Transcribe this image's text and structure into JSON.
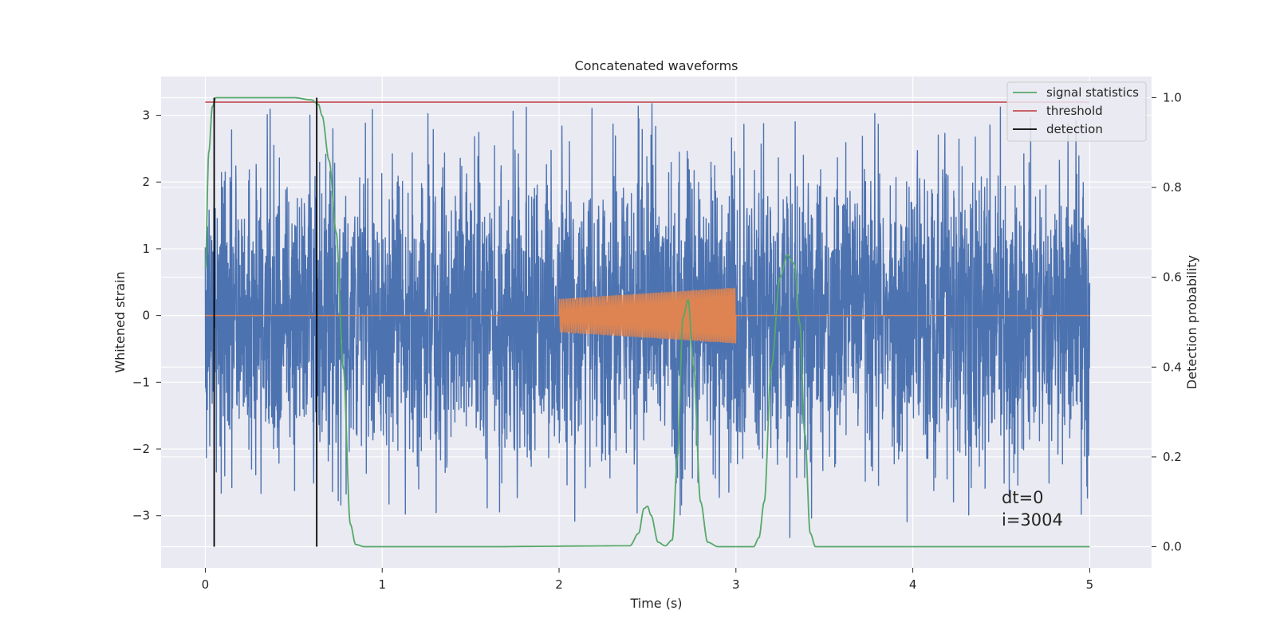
{
  "chart_data": {
    "type": "line",
    "title": "Concatenated waveforms",
    "xlabel": "Time (s)",
    "ylabel": "Whitened strain",
    "y2label": "Detection probability",
    "xlim": [
      -0.25,
      5.35
    ],
    "ylim": [
      -3.78,
      3.58
    ],
    "y2lim": [
      -0.047,
      1.047
    ],
    "xticks": [
      0,
      1,
      2,
      3,
      4,
      5
    ],
    "yticks": [
      -3,
      -2,
      -1,
      0,
      1,
      2,
      3
    ],
    "y2ticks": [
      0.0,
      0.2,
      0.4,
      0.6,
      0.8,
      1.0
    ],
    "xtick_labels": [
      "0",
      "1",
      "2",
      "3",
      "4",
      "5"
    ],
    "ytick_labels": [
      "−3",
      "−2",
      "−1",
      "0",
      "1",
      "2",
      "3"
    ],
    "y2tick_labels": [
      "0.0",
      "0.2",
      "0.4",
      "0.6",
      "0.8",
      "1.0"
    ],
    "grid": true,
    "legend_position": "top-right",
    "legend": [
      {
        "label": "signal statistics",
        "color": "#55a868"
      },
      {
        "label": "threshold",
        "color": "#c44e52"
      },
      {
        "label": "detection",
        "color": "#000000"
      }
    ],
    "annotation": [
      "dt=0",
      "i=3004"
    ],
    "series": [
      {
        "role": "whitened-strain-noise",
        "axis": "left",
        "color": "#4c72b0",
        "x_range": [
          0,
          5
        ],
        "typical_amplitude": 1.1,
        "approx_peaks": [
          3.2,
          -3.5
        ]
      },
      {
        "role": "injected-waveform",
        "axis": "left",
        "color": "#dd8452",
        "x_range": [
          0,
          5
        ],
        "chirp_x_range": [
          2.0,
          3.0
        ],
        "chirp_amplitude": [
          0.25,
          0.42
        ]
      },
      {
        "name": "signal statistics",
        "axis": "right",
        "color": "#55a868",
        "x": [
          0,
          0.02,
          0.04,
          0.06,
          0.08,
          0.1,
          0.5,
          0.6,
          0.64,
          0.66,
          0.7,
          0.74,
          0.78,
          0.82,
          0.85,
          0.9,
          1.5,
          2.4,
          2.45,
          2.48,
          2.5,
          2.52,
          2.56,
          2.6,
          2.64,
          2.67,
          2.7,
          2.73,
          2.76,
          2.8,
          2.84,
          2.9,
          3.1,
          3.13,
          3.16,
          3.2,
          3.25,
          3.29,
          3.33,
          3.36,
          3.39,
          3.42,
          3.45,
          4.0,
          5.0
        ],
        "y": [
          0.62,
          0.88,
          0.98,
          1.0,
          1.0,
          1.0,
          1.0,
          0.995,
          0.985,
          0.96,
          0.86,
          0.7,
          0.4,
          0.05,
          0.005,
          0.0,
          0.0,
          0.002,
          0.03,
          0.085,
          0.09,
          0.07,
          0.01,
          0.002,
          0.015,
          0.2,
          0.51,
          0.55,
          0.4,
          0.1,
          0.01,
          0.0,
          0.0,
          0.02,
          0.1,
          0.4,
          0.6,
          0.65,
          0.63,
          0.5,
          0.25,
          0.03,
          0.0,
          0.0,
          0.0
        ]
      },
      {
        "name": "threshold",
        "axis": "right",
        "color": "#c44e52",
        "x": [
          0,
          5
        ],
        "y": [
          0.99,
          0.99
        ]
      },
      {
        "name": "detection",
        "axis": "right",
        "color": "#000000",
        "x_positions": [
          0.05,
          0.63
        ],
        "y_range": [
          0,
          1
        ]
      }
    ]
  }
}
